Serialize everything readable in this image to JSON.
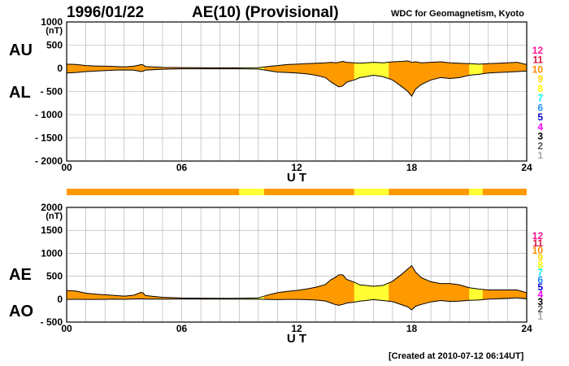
{
  "header": {
    "date": "1996/01/22",
    "index_title": "AE(10) (Provisional)",
    "organization": "WDC for Geomagnetism, Kyoto"
  },
  "footer": {
    "created": "[Created at 2010-07-12 06:14UT]"
  },
  "side_labels": {
    "au": "AU",
    "al": "AL",
    "ae": "AE",
    "ao": "AO"
  },
  "legend_levels": [
    {
      "label": "12",
      "color": "#ff1493"
    },
    {
      "label": "11",
      "color": "#dc143c"
    },
    {
      "label": "10",
      "color": "#ff8c00"
    },
    {
      "label": "9",
      "color": "#ffd700"
    },
    {
      "label": "8",
      "color": "#ffff00"
    },
    {
      "label": "7",
      "color": "#00ffff"
    },
    {
      "label": "6",
      "color": "#1e90ff"
    },
    {
      "label": "5",
      "color": "#0000cd"
    },
    {
      "label": "4",
      "color": "#ff00ff"
    },
    {
      "label": "3",
      "color": "#000000"
    },
    {
      "label": "2",
      "color": "#555555"
    },
    {
      "label": "1",
      "color": "#aaaaaa"
    }
  ],
  "colors": {
    "fill_main": "#ff9900",
    "fill_highlight": "#ffff33",
    "line": "#000000",
    "grid": "#aaaaaa"
  },
  "chart_data": [
    {
      "type": "area",
      "title": "AU / AL",
      "ytitle": "(nT)",
      "xlabel": "U T",
      "xlim": [
        0,
        24
      ],
      "ylim": [
        -2000,
        1000
      ],
      "x_ticks": [
        "00",
        "06",
        "12",
        "18",
        "24"
      ],
      "y_ticks": [
        "1000",
        "500",
        "0",
        "- 500",
        "- 1000",
        "- 1500",
        "- 2000"
      ],
      "grid": true,
      "x": [
        0,
        0.5,
        1,
        1.5,
        2,
        2.5,
        3,
        3.5,
        3.9,
        4,
        4.1,
        4.5,
        5,
        6,
        7,
        8,
        9,
        10,
        10.5,
        11,
        11.5,
        12,
        12.5,
        13,
        13.5,
        13.8,
        14,
        14.2,
        14.4,
        14.6,
        15,
        15.3,
        15.6,
        16,
        16.5,
        17,
        17.5,
        17.8,
        18,
        18.2,
        18.5,
        19,
        19.5,
        20,
        20.5,
        21,
        21.5,
        22,
        22.5,
        23,
        23.5,
        24
      ],
      "series": [
        {
          "name": "AU",
          "values": [
            90,
            85,
            60,
            50,
            45,
            40,
            30,
            45,
            80,
            70,
            40,
            30,
            20,
            15,
            12,
            10,
            10,
            12,
            40,
            60,
            80,
            90,
            100,
            110,
            120,
            130,
            120,
            130,
            150,
            130,
            120,
            110,
            120,
            130,
            120,
            140,
            150,
            160,
            130,
            140,
            120,
            130,
            140,
            120,
            110,
            100,
            90,
            100,
            110,
            120,
            130,
            80
          ]
        },
        {
          "name": "AL",
          "values": [
            -100,
            -90,
            -70,
            -60,
            -50,
            -40,
            -35,
            -40,
            -70,
            -60,
            -40,
            -30,
            -20,
            -10,
            -10,
            -10,
            -10,
            -15,
            -50,
            -80,
            -90,
            -100,
            -120,
            -150,
            -200,
            -300,
            -350,
            -400,
            -380,
            -300,
            -250,
            -200,
            -180,
            -150,
            -180,
            -250,
            -400,
            -500,
            -600,
            -450,
            -350,
            -250,
            -200,
            -220,
            -200,
            -150,
            -130,
            -100,
            -90,
            -80,
            -70,
            -60
          ]
        }
      ]
    },
    {
      "type": "area",
      "title": "AE / AO",
      "ytitle": "(nT)",
      "xlabel": "U T",
      "xlim": [
        0,
        24
      ],
      "ylim": [
        -500,
        2000
      ],
      "x_ticks": [
        "00",
        "06",
        "12",
        "18",
        "24"
      ],
      "y_ticks": [
        "2000",
        "1500",
        "1000",
        "500",
        "0",
        "- 500"
      ],
      "grid": true,
      "x": [
        0,
        0.5,
        1,
        1.5,
        2,
        2.5,
        3,
        3.5,
        3.9,
        4,
        4.1,
        4.5,
        5,
        6,
        7,
        8,
        9,
        10,
        10.5,
        11,
        11.5,
        12,
        12.5,
        13,
        13.5,
        13.8,
        14,
        14.2,
        14.4,
        14.6,
        15,
        15.3,
        15.6,
        16,
        16.5,
        17,
        17.5,
        17.8,
        18,
        18.2,
        18.5,
        19,
        19.5,
        20,
        20.5,
        21,
        21.5,
        22,
        22.5,
        23,
        23.5,
        24
      ],
      "series": [
        {
          "name": "AE",
          "values": [
            190,
            175,
            130,
            110,
            95,
            80,
            65,
            85,
            150,
            130,
            80,
            60,
            40,
            25,
            22,
            20,
            20,
            27,
            90,
            140,
            170,
            190,
            220,
            260,
            320,
            430,
            470,
            530,
            530,
            430,
            370,
            310,
            300,
            280,
            300,
            390,
            550,
            660,
            730,
            590,
            470,
            380,
            340,
            340,
            310,
            250,
            220,
            200,
            200,
            200,
            200,
            140
          ]
        },
        {
          "name": "AO",
          "values": [
            -5,
            -3,
            -5,
            -5,
            -3,
            0,
            -3,
            3,
            5,
            5,
            0,
            0,
            0,
            3,
            1,
            0,
            0,
            -2,
            -5,
            -10,
            -5,
            -5,
            -10,
            -20,
            -40,
            -85,
            -115,
            -135,
            -115,
            -85,
            -65,
            -45,
            -30,
            -10,
            -30,
            -55,
            -125,
            -170,
            -235,
            -155,
            -115,
            -60,
            -30,
            -50,
            -45,
            -25,
            -20,
            0,
            10,
            20,
            30,
            10
          ]
        }
      ]
    }
  ],
  "activity_bar": {
    "segments": [
      {
        "from": 0,
        "to": 9,
        "level": "10"
      },
      {
        "from": 9,
        "to": 10.3,
        "level": "8"
      },
      {
        "from": 10.3,
        "to": 15,
        "level": "10"
      },
      {
        "from": 15,
        "to": 16.8,
        "level": "8"
      },
      {
        "from": 16.8,
        "to": 21,
        "level": "10"
      },
      {
        "from": 21,
        "to": 21.7,
        "level": "8"
      },
      {
        "from": 21.7,
        "to": 24,
        "level": "10"
      }
    ]
  },
  "highlight_intervals": [
    [
      9,
      10.3
    ],
    [
      15,
      16.8
    ],
    [
      21,
      21.7
    ]
  ]
}
